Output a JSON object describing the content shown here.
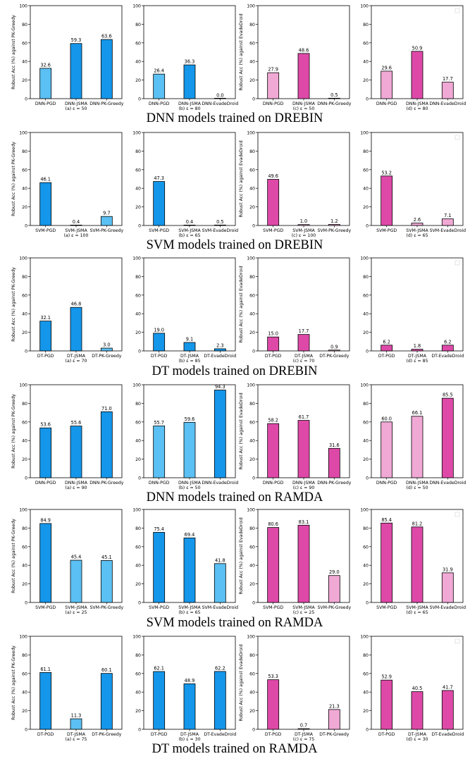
{
  "colors": {
    "blue_dark": "#1496EA",
    "blue_light": "#5BC0F3",
    "pink_dark": "#DE49A8",
    "pink_light": "#F0A8D4",
    "edge": "#000000"
  },
  "row_captions": [
    "DNN models trained on DREBIN",
    "SVM models trained on DREBIN",
    "DT models trained on DREBIN",
    "DNN models trained on RAMDA",
    "SVM models trained on RAMDA",
    "DT models trained on RAMDA"
  ],
  "chart_data": [
    {
      "type": "bar",
      "categories": [
        "DNN-PGD",
        "DNN-JSMA",
        "DNN-PK-Greedy"
      ],
      "values": [
        32.6,
        59.3,
        63.6
      ],
      "labels": [
        "32.6",
        "59.3",
        "63.6"
      ],
      "fills": [
        "blue_light",
        "blue_dark",
        "blue_dark"
      ],
      "subcaption": "(a) ε = 50",
      "ylabel": "Robust Acc (%) against PK-Greedy",
      "ylim": [
        0,
        100
      ],
      "yticks": [
        "0",
        "20",
        "40",
        "60",
        "80",
        "100"
      ],
      "legend_box": false
    },
    {
      "type": "bar",
      "categories": [
        "DNN-PGD",
        "DNN-JSMA",
        "DNN-EvadeDroid"
      ],
      "values": [
        26.4,
        36.3,
        0.0
      ],
      "labels": [
        "26.4",
        "36.3",
        "0.0"
      ],
      "fills": [
        "blue_light",
        "blue_dark",
        "blue_light"
      ],
      "subcaption": "(b) ε = 80",
      "ylabel": "",
      "ylim": [
        0,
        100
      ],
      "yticks": [
        "0",
        "20",
        "40",
        "60",
        "80",
        "100"
      ],
      "legend_box": false
    },
    {
      "type": "bar",
      "categories": [
        "DNN-PGD",
        "DNN-JSMA",
        "DNN-PK-Greedy"
      ],
      "values": [
        27.9,
        48.6,
        0.5
      ],
      "labels": [
        "27.9",
        "48.6",
        "0.5"
      ],
      "fills": [
        "pink_light",
        "pink_dark",
        "pink_light"
      ],
      "subcaption": "(c) ε = 50",
      "ylabel": "Robust Acc (%) against EvadeDroid",
      "ylim": [
        0,
        100
      ],
      "yticks": [
        "0",
        "20",
        "40",
        "60",
        "80",
        "100"
      ],
      "legend_box": false
    },
    {
      "type": "bar",
      "categories": [
        "DNN-PGD",
        "DNN-JSMA",
        "DNN-EvadeDroid"
      ],
      "values": [
        29.6,
        50.9,
        17.7
      ],
      "labels": [
        "29.6",
        "50.9",
        "17.7"
      ],
      "fills": [
        "pink_light",
        "pink_dark",
        "pink_light"
      ],
      "subcaption": "(d) ε = 80",
      "ylabel": "",
      "ylim": [
        0,
        100
      ],
      "yticks": [
        "0",
        "20",
        "40",
        "60",
        "80",
        "100"
      ],
      "legend_box": true
    },
    {
      "type": "bar",
      "categories": [
        "SVM-PGD",
        "SVM-JSMA",
        "SVM-PK-Greedy"
      ],
      "values": [
        46.1,
        0.4,
        9.7
      ],
      "labels": [
        "46.1",
        "0.4",
        "9.7"
      ],
      "fills": [
        "blue_dark",
        "blue_light",
        "blue_light"
      ],
      "subcaption": "(a) ε = 100",
      "ylabel": "Robust Acc (%) against PK-Greedy",
      "ylim": [
        0,
        100
      ],
      "yticks": [
        "0",
        "20",
        "40",
        "60",
        "80",
        "100"
      ],
      "legend_box": false
    },
    {
      "type": "bar",
      "categories": [
        "SVM-PGD",
        "SVM-JSMA",
        "SVM-EvadeDroid"
      ],
      "values": [
        47.3,
        0.4,
        0.5
      ],
      "labels": [
        "47.3",
        "0.4",
        "0.5"
      ],
      "fills": [
        "blue_dark",
        "blue_light",
        "blue_light"
      ],
      "subcaption": "(b) ε = 65",
      "ylabel": "",
      "ylim": [
        0,
        100
      ],
      "yticks": [
        "0",
        "20",
        "40",
        "60",
        "80",
        "100"
      ],
      "legend_box": false
    },
    {
      "type": "bar",
      "categories": [
        "SVM-PGD",
        "SVM-JSMA",
        "SVM-PK-Greedy"
      ],
      "values": [
        49.6,
        1.0,
        1.2
      ],
      "labels": [
        "49.6",
        "1.0",
        "1.2"
      ],
      "fills": [
        "pink_dark",
        "pink_light",
        "pink_light"
      ],
      "subcaption": "(c) ε = 100",
      "ylabel": "Robust Acc (%) against EvadeDroid",
      "ylim": [
        0,
        100
      ],
      "yticks": [
        "0",
        "20",
        "40",
        "60",
        "80",
        "100"
      ],
      "legend_box": false
    },
    {
      "type": "bar",
      "categories": [
        "SVM-PGD",
        "SVM-JSMA",
        "SVM-EvadeDroid"
      ],
      "values": [
        53.2,
        2.6,
        7.1
      ],
      "labels": [
        "53.2",
        "2.6",
        "7.1"
      ],
      "fills": [
        "pink_dark",
        "pink_light",
        "pink_light"
      ],
      "subcaption": "(d) ε = 65",
      "ylabel": "",
      "ylim": [
        0,
        100
      ],
      "yticks": [
        "0",
        "20",
        "40",
        "60",
        "80",
        "100"
      ],
      "legend_box": true
    },
    {
      "type": "bar",
      "categories": [
        "DT-PGD",
        "DT-JSMA",
        "DT-PK-Greedy"
      ],
      "values": [
        32.1,
        46.8,
        3.0
      ],
      "labels": [
        "32.1",
        "46.8",
        "3.0"
      ],
      "fills": [
        "blue_dark",
        "blue_dark",
        "blue_light"
      ],
      "subcaption": "(a) ε = 70",
      "ylabel": "Robust Acc (%) against PK-Greedy",
      "ylim": [
        0,
        100
      ],
      "yticks": [
        "0",
        "20",
        "40",
        "60",
        "80",
        "100"
      ],
      "legend_box": false
    },
    {
      "type": "bar",
      "categories": [
        "DT-PGD",
        "DT-JSMA",
        "DT-EvadeDroid"
      ],
      "values": [
        19.0,
        9.1,
        2.3
      ],
      "labels": [
        "19.0",
        "9.1",
        "2.3"
      ],
      "fills": [
        "blue_dark",
        "blue_dark",
        "blue_dark"
      ],
      "subcaption": "(b) ε = 85",
      "ylabel": "",
      "ylim": [
        0,
        100
      ],
      "yticks": [
        "0",
        "20",
        "40",
        "60",
        "80",
        "100"
      ],
      "legend_box": false
    },
    {
      "type": "bar",
      "categories": [
        "DT-PGD",
        "DT-JSMA",
        "DT-PK-Greedy"
      ],
      "values": [
        15.0,
        17.7,
        0.9
      ],
      "labels": [
        "15.0",
        "17.7",
        "0.9"
      ],
      "fills": [
        "pink_dark",
        "pink_dark",
        "pink_light"
      ],
      "subcaption": "(c) ε = 70",
      "ylabel": "Robust Acc (%) against EvadeDroid",
      "ylim": [
        0,
        100
      ],
      "yticks": [
        "0",
        "20",
        "40",
        "60",
        "80",
        "100"
      ],
      "legend_box": false
    },
    {
      "type": "bar",
      "categories": [
        "DT-PGD",
        "DT-JSMA",
        "DT-EvadeDroid"
      ],
      "values": [
        6.2,
        1.8,
        6.2
      ],
      "labels": [
        "6.2",
        "1.8",
        "6.2"
      ],
      "fills": [
        "pink_dark",
        "pink_dark",
        "pink_dark"
      ],
      "subcaption": "(d) ε = 85",
      "ylabel": "",
      "ylim": [
        0,
        100
      ],
      "yticks": [
        "0",
        "20",
        "40",
        "60",
        "80",
        "100"
      ],
      "legend_box": true
    },
    {
      "type": "bar",
      "categories": [
        "DNN-PGD",
        "DNN-JSMA",
        "DNN-PK-Greedy"
      ],
      "values": [
        53.6,
        55.6,
        71.0
      ],
      "labels": [
        "53.6",
        "55.6",
        "71.0"
      ],
      "fills": [
        "blue_dark",
        "blue_dark",
        "blue_dark"
      ],
      "subcaption": "(a) ε = 90",
      "ylabel": "Robust Acc (%) against PK-Greedy",
      "ylim": [
        0,
        100
      ],
      "yticks": [
        "0",
        "20",
        "40",
        "60",
        "80",
        "100"
      ],
      "legend_box": false
    },
    {
      "type": "bar",
      "categories": [
        "DNN-PGD",
        "DNN-JSMA",
        "DNN-EvadeDroid"
      ],
      "values": [
        55.7,
        59.6,
        94.3
      ],
      "labels": [
        "55.7",
        "59.6",
        "94.3"
      ],
      "fills": [
        "blue_light",
        "blue_light",
        "blue_dark"
      ],
      "subcaption": "(b) ε = 50",
      "ylabel": "",
      "ylim": [
        0,
        100
      ],
      "yticks": [
        "0",
        "20",
        "40",
        "60",
        "80",
        "100"
      ],
      "legend_box": false
    },
    {
      "type": "bar",
      "categories": [
        "DNN-PGD",
        "DNN-JSMA",
        "DNN-PK-Greedy"
      ],
      "values": [
        58.2,
        61.7,
        31.6
      ],
      "labels": [
        "58.2",
        "61.7",
        "31.6"
      ],
      "fills": [
        "pink_dark",
        "pink_dark",
        "pink_dark"
      ],
      "subcaption": "(c) ε = 90",
      "ylabel": "Robust Acc (%) against EvadeDroid",
      "ylim": [
        0,
        100
      ],
      "yticks": [
        "0",
        "20",
        "40",
        "60",
        "80",
        "100"
      ],
      "legend_box": false
    },
    {
      "type": "bar",
      "categories": [
        "DNN-PGD",
        "DNN-JSMA",
        "DNN-EvadeDroid"
      ],
      "values": [
        60.0,
        66.1,
        85.5
      ],
      "labels": [
        "60.0",
        "66.1",
        "85.5"
      ],
      "fills": [
        "pink_light",
        "pink_light",
        "pink_dark"
      ],
      "subcaption": "(d) ε = 50",
      "ylabel": "",
      "ylim": [
        0,
        100
      ],
      "yticks": [
        "0",
        "20",
        "40",
        "60",
        "80",
        "100"
      ],
      "legend_box": false
    },
    {
      "type": "bar",
      "categories": [
        "SVM-PGD",
        "SVM-JSMA",
        "SVM-PK-Greedy"
      ],
      "values": [
        84.9,
        45.4,
        45.1
      ],
      "labels": [
        "84.9",
        "45.4",
        "45.1"
      ],
      "fills": [
        "blue_dark",
        "blue_light",
        "blue_light"
      ],
      "subcaption": "(a) ε = 25",
      "ylabel": "Robust Acc (%) against PK-Greedy",
      "ylim": [
        0,
        100
      ],
      "yticks": [
        "0",
        "20",
        "40",
        "60",
        "80",
        "100"
      ],
      "legend_box": false
    },
    {
      "type": "bar",
      "categories": [
        "SVM-PGD",
        "SVM-JSMA",
        "SVM-EvadeDroid"
      ],
      "values": [
        75.4,
        69.4,
        41.8
      ],
      "labels": [
        "75.4",
        "69.4",
        "41.8"
      ],
      "fills": [
        "blue_dark",
        "blue_dark",
        "blue_light"
      ],
      "subcaption": "(b) ε = 65",
      "ylabel": "",
      "ylim": [
        0,
        100
      ],
      "yticks": [
        "0",
        "20",
        "40",
        "60",
        "80",
        "100"
      ],
      "legend_box": false
    },
    {
      "type": "bar",
      "categories": [
        "SVM-PGD",
        "SVM-JSMA",
        "SVM-PK-Greedy"
      ],
      "values": [
        80.6,
        83.1,
        29.0
      ],
      "labels": [
        "80.6",
        "83.1",
        "29.0"
      ],
      "fills": [
        "pink_dark",
        "pink_dark",
        "pink_light"
      ],
      "subcaption": "(c) ε = 25",
      "ylabel": "Robust Acc (%) against EvadeDroid",
      "ylim": [
        0,
        100
      ],
      "yticks": [
        "0",
        "20",
        "40",
        "60",
        "80",
        "100"
      ],
      "legend_box": false
    },
    {
      "type": "bar",
      "categories": [
        "SVM-PGD",
        "SVM-JSMA",
        "SVM-EvadeDroid"
      ],
      "values": [
        85.4,
        81.2,
        31.9
      ],
      "labels": [
        "85.4",
        "81.2",
        "31.9"
      ],
      "fills": [
        "pink_dark",
        "pink_dark",
        "pink_light"
      ],
      "subcaption": "(d) ε = 65",
      "ylabel": "",
      "ylim": [
        0,
        100
      ],
      "yticks": [
        "0",
        "20",
        "40",
        "60",
        "80",
        "100"
      ],
      "legend_box": true
    },
    {
      "type": "bar",
      "categories": [
        "DT-PGD",
        "DT-JSMA",
        "DT-PK-Greedy"
      ],
      "values": [
        61.1,
        11.3,
        60.1
      ],
      "labels": [
        "61.1",
        "11.3",
        "60.1"
      ],
      "fills": [
        "blue_dark",
        "blue_light",
        "blue_dark"
      ],
      "subcaption": "(a) ε = 75",
      "ylabel": "Robust Acc (%) against PK-Greedy",
      "ylim": [
        0,
        100
      ],
      "yticks": [
        "0",
        "20",
        "40",
        "60",
        "80",
        "100"
      ],
      "legend_box": false
    },
    {
      "type": "bar",
      "categories": [
        "DT-PGD",
        "DT-JSMA",
        "DT-EvadeDroid"
      ],
      "values": [
        62.1,
        48.9,
        62.2
      ],
      "labels": [
        "62.1",
        "48.9",
        "62.2"
      ],
      "fills": [
        "blue_dark",
        "blue_dark",
        "blue_dark"
      ],
      "subcaption": "(b) ε = 30",
      "ylabel": "",
      "ylim": [
        0,
        100
      ],
      "yticks": [
        "0",
        "20",
        "40",
        "60",
        "80",
        "100"
      ],
      "legend_box": false
    },
    {
      "type": "bar",
      "categories": [
        "DT-PGD",
        "DT-JSMA",
        "DT-PK-Greedy"
      ],
      "values": [
        53.3,
        0.7,
        21.3
      ],
      "labels": [
        "53.3",
        "0.7",
        "21.3"
      ],
      "fills": [
        "pink_dark",
        "pink_light",
        "pink_light"
      ],
      "subcaption": "(c) ε = 75",
      "ylabel": "Robust Acc (%) against EvadeDroid",
      "ylim": [
        0,
        100
      ],
      "yticks": [
        "0",
        "20",
        "40",
        "60",
        "80",
        "100"
      ],
      "legend_box": false
    },
    {
      "type": "bar",
      "categories": [
        "DT-PGD",
        "DT-JSMA",
        "DT-EvadeDroid"
      ],
      "values": [
        52.9,
        40.5,
        41.7
      ],
      "labels": [
        "52.9",
        "40.5",
        "41.7"
      ],
      "fills": [
        "pink_dark",
        "pink_dark",
        "pink_dark"
      ],
      "subcaption": "(d) ε = 30",
      "ylabel": "",
      "ylim": [
        0,
        100
      ],
      "yticks": [
        "0",
        "20",
        "40",
        "60",
        "80",
        "100"
      ],
      "legend_box": true
    }
  ]
}
